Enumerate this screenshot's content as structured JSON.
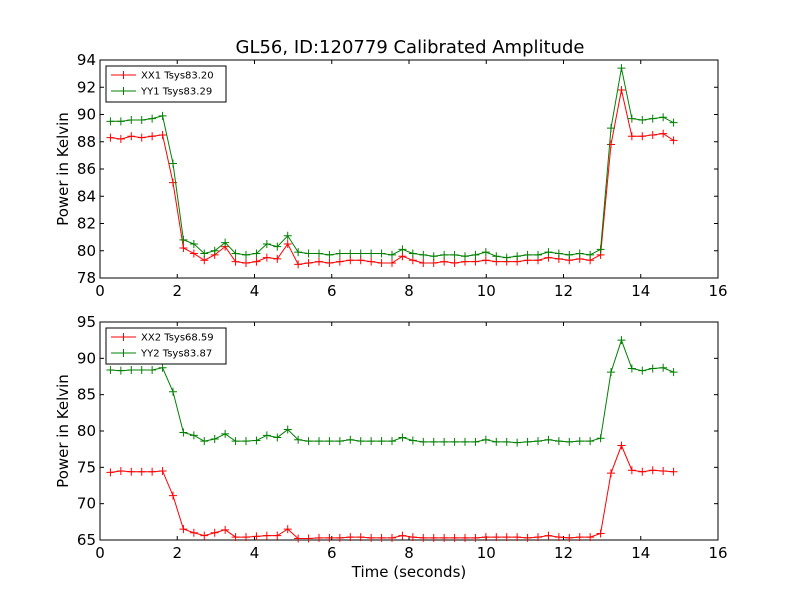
{
  "title": "GL56, ID:120779 Calibrated Amplitude",
  "chart_data": [
    {
      "type": "line",
      "title": "GL56, ID:120779 Calibrated Amplitude",
      "xlabel": "",
      "ylabel": "Power in Kelvin",
      "xlim": [
        0,
        16
      ],
      "ylim": [
        78,
        94
      ],
      "xticks": [
        "0",
        "2",
        "4",
        "6",
        "8",
        "10",
        "12",
        "14",
        "16"
      ],
      "yticks": [
        "78",
        "80",
        "82",
        "84",
        "86",
        "88",
        "90",
        "92",
        "94"
      ],
      "legend_position": "top-left",
      "grid": false,
      "x": [
        0.27,
        0.54,
        0.81,
        1.08,
        1.35,
        1.62,
        1.89,
        2.16,
        2.43,
        2.7,
        2.97,
        3.24,
        3.51,
        3.78,
        4.05,
        4.32,
        4.59,
        4.86,
        5.13,
        5.4,
        5.67,
        5.94,
        6.21,
        6.48,
        6.75,
        7.02,
        7.29,
        7.56,
        7.83,
        8.1,
        8.37,
        8.64,
        8.91,
        9.18,
        9.45,
        9.72,
        9.99,
        10.26,
        10.53,
        10.8,
        11.07,
        11.34,
        11.61,
        11.88,
        12.15,
        12.42,
        12.69,
        12.96,
        13.23,
        13.5,
        13.77,
        14.04,
        14.31,
        14.58,
        14.85
      ],
      "series": [
        {
          "name": "XX1 Tsys83.20",
          "color": "#ff0000",
          "values": [
            88.3,
            88.2,
            88.4,
            88.3,
            88.4,
            88.5,
            85.0,
            80.2,
            79.8,
            79.3,
            79.7,
            80.3,
            79.2,
            79.1,
            79.2,
            79.5,
            79.4,
            80.5,
            79.0,
            79.1,
            79.2,
            79.1,
            79.2,
            79.3,
            79.3,
            79.2,
            79.1,
            79.1,
            79.6,
            79.3,
            79.1,
            79.1,
            79.2,
            79.1,
            79.2,
            79.2,
            79.3,
            79.2,
            79.2,
            79.2,
            79.3,
            79.3,
            79.5,
            79.4,
            79.3,
            79.4,
            79.3,
            79.7,
            87.8,
            91.8,
            88.4,
            88.4,
            88.5,
            88.6,
            88.1
          ]
        },
        {
          "name": "YY1 Tsys83.29",
          "color": "#008000",
          "values": [
            89.5,
            89.5,
            89.6,
            89.6,
            89.7,
            89.9,
            86.4,
            80.8,
            80.5,
            79.8,
            80.0,
            80.6,
            79.8,
            79.7,
            79.8,
            80.5,
            80.3,
            81.1,
            79.9,
            79.8,
            79.8,
            79.7,
            79.8,
            79.8,
            79.8,
            79.8,
            79.8,
            79.7,
            80.1,
            79.8,
            79.7,
            79.6,
            79.7,
            79.7,
            79.6,
            79.7,
            79.9,
            79.6,
            79.5,
            79.6,
            79.7,
            79.7,
            79.9,
            79.8,
            79.7,
            79.8,
            79.7,
            80.1,
            89.0,
            93.4,
            89.7,
            89.6,
            89.7,
            89.8,
            89.4
          ]
        }
      ]
    },
    {
      "type": "line",
      "title": "",
      "xlabel": "Time (seconds)",
      "ylabel": "Power in Kelvin",
      "xlim": [
        0,
        16
      ],
      "ylim": [
        65,
        95
      ],
      "xticks": [
        "0",
        "2",
        "4",
        "6",
        "8",
        "10",
        "12",
        "14",
        "16"
      ],
      "yticks": [
        "65",
        "70",
        "75",
        "80",
        "85",
        "90",
        "95"
      ],
      "legend_position": "top-left",
      "grid": false,
      "x": [
        0.27,
        0.54,
        0.81,
        1.08,
        1.35,
        1.62,
        1.89,
        2.16,
        2.43,
        2.7,
        2.97,
        3.24,
        3.51,
        3.78,
        4.05,
        4.32,
        4.59,
        4.86,
        5.13,
        5.4,
        5.67,
        5.94,
        6.21,
        6.48,
        6.75,
        7.02,
        7.29,
        7.56,
        7.83,
        8.1,
        8.37,
        8.64,
        8.91,
        9.18,
        9.45,
        9.72,
        9.99,
        10.26,
        10.53,
        10.8,
        11.07,
        11.34,
        11.61,
        11.88,
        12.15,
        12.42,
        12.69,
        12.96,
        13.23,
        13.5,
        13.77,
        14.04,
        14.31,
        14.58,
        14.85
      ],
      "series": [
        {
          "name": "XX2 Tsys68.59",
          "color": "#ff0000",
          "values": [
            74.3,
            74.5,
            74.4,
            74.4,
            74.4,
            74.5,
            71.1,
            66.5,
            66.0,
            65.6,
            66.0,
            66.4,
            65.4,
            65.4,
            65.5,
            65.6,
            65.6,
            66.5,
            65.2,
            65.2,
            65.3,
            65.3,
            65.3,
            65.4,
            65.4,
            65.3,
            65.3,
            65.3,
            65.6,
            65.4,
            65.3,
            65.3,
            65.3,
            65.3,
            65.3,
            65.3,
            65.4,
            65.4,
            65.4,
            65.4,
            65.3,
            65.4,
            65.6,
            65.4,
            65.3,
            65.4,
            65.4,
            65.9,
            74.2,
            78.0,
            74.6,
            74.4,
            74.6,
            74.5,
            74.4
          ]
        },
        {
          "name": "YY2 Tsys83.87",
          "color": "#008000",
          "values": [
            88.4,
            88.3,
            88.4,
            88.4,
            88.4,
            88.7,
            85.4,
            79.8,
            79.4,
            78.6,
            78.9,
            79.6,
            78.6,
            78.6,
            78.7,
            79.4,
            79.1,
            80.2,
            78.8,
            78.6,
            78.6,
            78.6,
            78.6,
            78.8,
            78.6,
            78.6,
            78.6,
            78.6,
            79.1,
            78.7,
            78.5,
            78.5,
            78.5,
            78.5,
            78.5,
            78.5,
            78.8,
            78.5,
            78.5,
            78.4,
            78.5,
            78.6,
            78.8,
            78.6,
            78.5,
            78.6,
            78.6,
            79.0,
            88.1,
            92.5,
            88.6,
            88.3,
            88.6,
            88.7,
            88.1
          ]
        }
      ]
    }
  ]
}
